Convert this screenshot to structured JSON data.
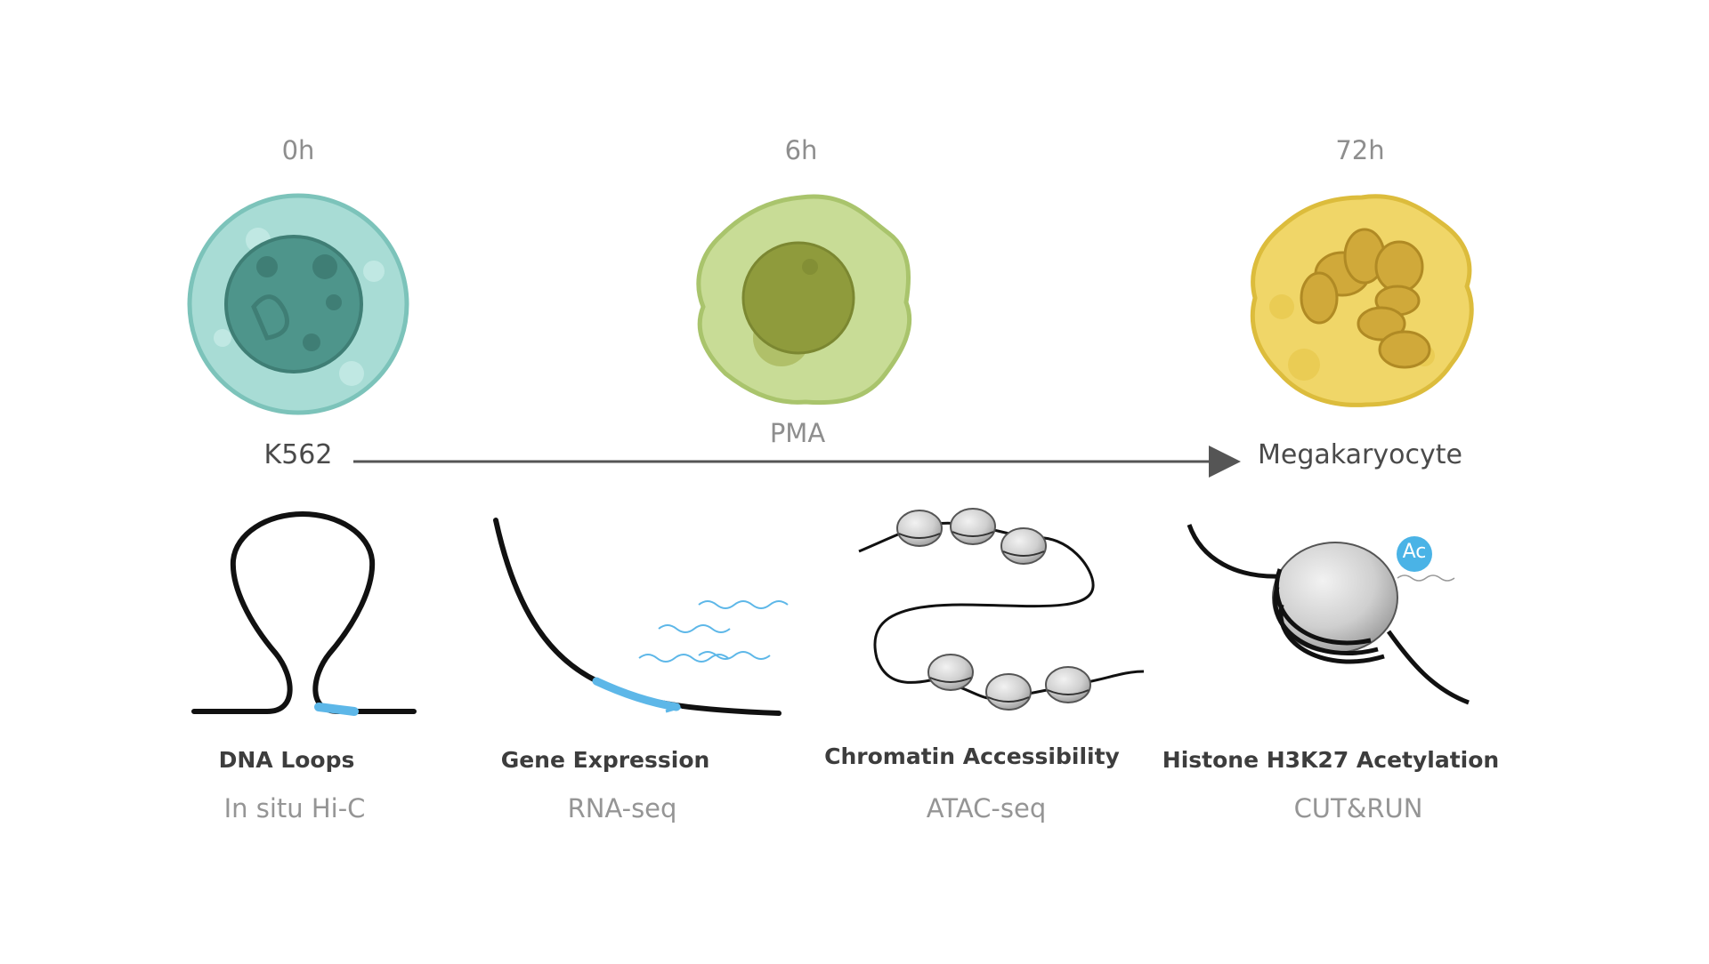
{
  "timepoints": [
    "0h",
    "6h",
    "72h"
  ],
  "cell_start": "K562",
  "cell_end": "Megakaryocyte",
  "treatment": "PMA",
  "assays": [
    {
      "title": "DNA Loops",
      "method": "In situ Hi-C"
    },
    {
      "title": "Gene Expression",
      "method": "RNA-seq"
    },
    {
      "title": "Chromatin Accessibility",
      "method": "ATAC-seq"
    },
    {
      "title": "Histone H3K27 Acetylation",
      "method": "CUT&RUN"
    }
  ],
  "acetyl_mark": "Ac",
  "colors": {
    "k562_cell": "#9fd6d0",
    "k562_nucleus": "#4a8f86",
    "pma_cell": "#c3d98c",
    "pma_nucleus": "#8a9a3a",
    "mk_cell": "#edd463",
    "mk_nucleus": "#c9a530",
    "dna": "#111111",
    "highlight": "#5db7e8",
    "arrow": "#555555"
  }
}
